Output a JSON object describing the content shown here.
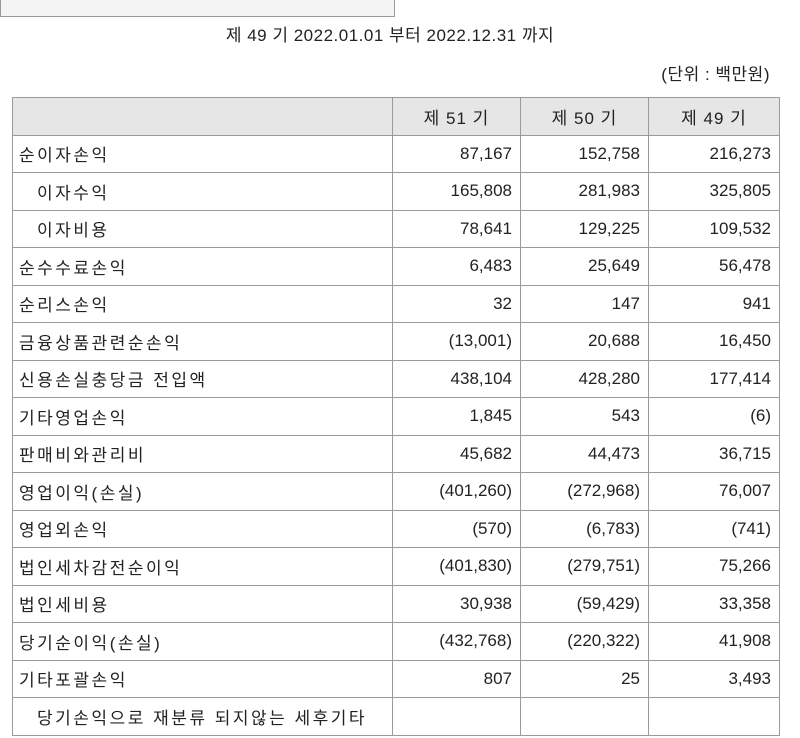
{
  "period": "제 49 기 2022.01.01 부터 2022.12.31 까지",
  "unit": "(단위 : 백만원)",
  "table": {
    "header": [
      "제 51 기",
      "제 50 기",
      "제 49 기"
    ],
    "rows": [
      [
        "순이자손익",
        "87,167",
        "152,758",
        "216,273"
      ],
      [
        "이자수익",
        "165,808",
        "281,983",
        "325,805"
      ],
      [
        "이자비용",
        "78,641",
        "129,225",
        "109,532"
      ],
      [
        "순수수료손익",
        "6,483",
        "25,649",
        "56,478"
      ],
      [
        "순리스손익",
        "32",
        "147",
        "941"
      ],
      [
        "금융상품관련순손익",
        "(13,001)",
        "20,688",
        "16,450"
      ],
      [
        "신용손실충당금 전입액",
        "438,104",
        "428,280",
        "177,414"
      ],
      [
        "기타영업손익",
        "1,845",
        "543",
        "(6)"
      ],
      [
        "판매비와관리비",
        "45,682",
        "44,473",
        "36,715"
      ],
      [
        "영업이익(손실)",
        "(401,260)",
        "(272,968)",
        "76,007"
      ],
      [
        "영업외손익",
        "(570)",
        "(6,783)",
        "(741)"
      ],
      [
        "법인세차감전순이익",
        "(401,830)",
        "(279,751)",
        "75,266"
      ],
      [
        "법인세비용",
        "30,938",
        "(59,429)",
        "33,358"
      ],
      [
        "당기순이익(손실)",
        "(432,768)",
        "(220,322)",
        "41,908"
      ],
      [
        "기타포괄손익",
        "807",
        "25",
        "3,493"
      ],
      [
        "당기손익으로 재분류 되지않는 세후기타"
      ]
    ]
  }
}
